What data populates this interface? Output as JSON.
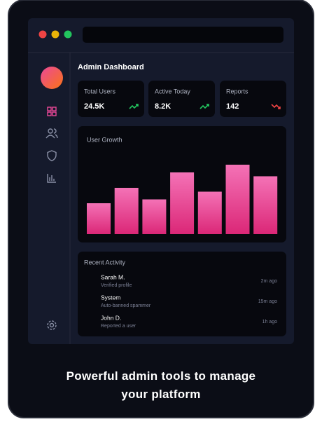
{
  "header": {
    "title": "Admin Dashboard"
  },
  "stats": [
    {
      "label": "Total Users",
      "value": "24.5K",
      "trend": "up"
    },
    {
      "label": "Active Today",
      "value": "8.2K",
      "trend": "up"
    },
    {
      "label": "Reports",
      "value": "142",
      "trend": "down"
    }
  ],
  "chart_data": {
    "type": "bar",
    "title": "User Growth",
    "categories": [
      null,
      null,
      null,
      null,
      null,
      null,
      null
    ],
    "values": [
      40,
      60,
      45,
      80,
      55,
      90,
      75
    ],
    "ylim": [
      0,
      100
    ],
    "color_top": "#f472b6",
    "color_bottom": "#db2777"
  },
  "activity": {
    "title": "Recent Activity",
    "items": [
      {
        "name": "Sarah M.",
        "detail": "Verified profile",
        "time": "2m ago"
      },
      {
        "name": "System",
        "detail": "Auto-banned spammer",
        "time": "15m ago"
      },
      {
        "name": "John D.",
        "detail": "Reported a user",
        "time": "1h ago"
      }
    ]
  },
  "caption": "Powerful admin tools to manage your platform"
}
